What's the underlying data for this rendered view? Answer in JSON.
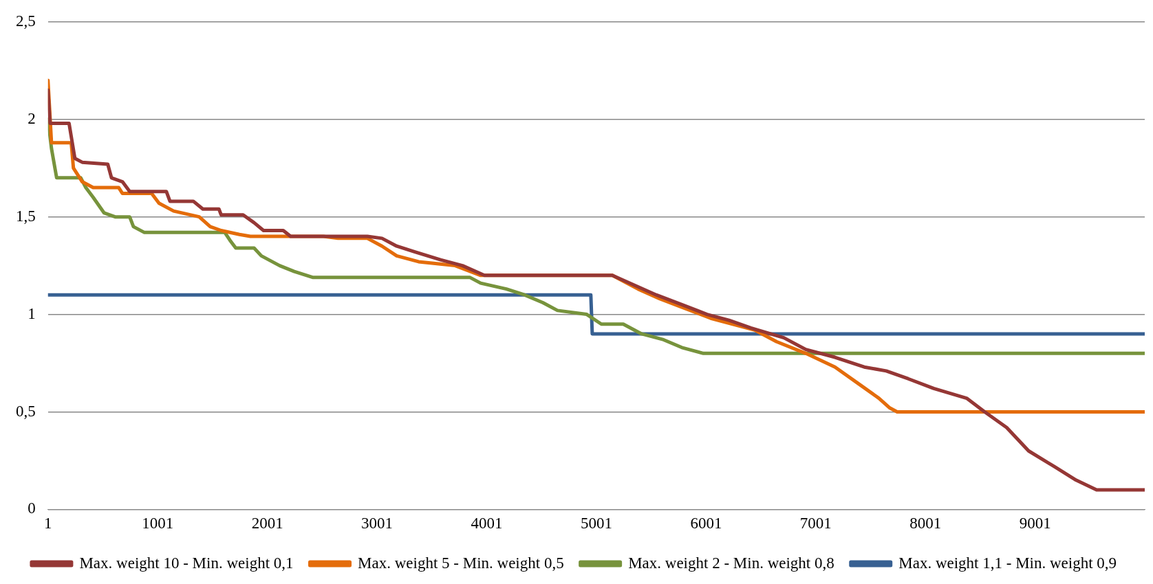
{
  "chart_data": {
    "type": "line",
    "xlim": [
      1,
      10000
    ],
    "xticks": [
      1,
      1001,
      2001,
      3001,
      4001,
      5001,
      6001,
      7001,
      8001,
      9001
    ],
    "ylim": [
      0,
      2.5
    ],
    "yticks": [
      0,
      {
        "value": 0.5,
        "label": "0,5"
      },
      1,
      {
        "value": 1.5,
        "label": "1,5"
      },
      2,
      {
        "value": 2.5,
        "label": "2,5"
      }
    ],
    "grid": "y",
    "legend": "bottom",
    "marker": "none",
    "line_style": "solid",
    "series": [
      {
        "name": "Max. weight 10 - Min. weight 0,1",
        "color": "#953735",
        "x": [
          1,
          20,
          193,
          246,
          313,
          546,
          580,
          680,
          746,
          1080,
          1113,
          1326,
          1413,
          1560,
          1580,
          1780,
          1880,
          1966,
          2146,
          2213,
          2913,
          3046,
          3180,
          3346,
          3580,
          3780,
          3980,
          5146,
          5346,
          5546,
          5780,
          6010,
          6210,
          6410,
          6710,
          6910,
          7176,
          7443,
          7643,
          7843,
          8076,
          8376,
          8541,
          8741,
          8941,
          9174,
          9374,
          9561,
          10000
        ],
        "values": [
          2.15,
          1.98,
          1.98,
          1.8,
          1.78,
          1.77,
          1.7,
          1.68,
          1.63,
          1.63,
          1.58,
          1.58,
          1.54,
          1.54,
          1.51,
          1.51,
          1.47,
          1.43,
          1.43,
          1.4,
          1.4,
          1.39,
          1.35,
          1.32,
          1.28,
          1.25,
          1.2,
          1.2,
          1.15,
          1.1,
          1.05,
          1.0,
          0.97,
          0.93,
          0.88,
          0.82,
          0.78,
          0.73,
          0.71,
          0.67,
          0.62,
          0.57,
          0.5,
          0.42,
          0.3,
          0.22,
          0.15,
          0.1,
          0.1
        ]
      },
      {
        "name": "Max. weight 5 - Min. weight 0,5",
        "color": "#e46c0a",
        "x": [
          1,
          33,
          213,
          233,
          313,
          413,
          646,
          680,
          946,
          1013,
          1146,
          1380,
          1480,
          1580,
          1746,
          1846,
          2512,
          2645,
          2913,
          3046,
          3180,
          3380,
          3713,
          3946,
          5146,
          5380,
          5580,
          5813,
          6043,
          6243,
          6443,
          6643,
          6910,
          7176,
          7376,
          7576,
          7676,
          7743,
          10000
        ],
        "values": [
          2.2,
          1.88,
          1.88,
          1.75,
          1.68,
          1.65,
          1.65,
          1.62,
          1.62,
          1.57,
          1.53,
          1.5,
          1.45,
          1.43,
          1.41,
          1.4,
          1.4,
          1.39,
          1.39,
          1.35,
          1.3,
          1.27,
          1.25,
          1.2,
          1.2,
          1.13,
          1.08,
          1.03,
          0.98,
          0.95,
          0.92,
          0.86,
          0.8,
          0.73,
          0.65,
          0.57,
          0.52,
          0.5,
          0.5
        ]
      },
      {
        "name": "Max. weight 2 - Min. weight 0,8",
        "color": "#77933c",
        "x": [
          1,
          33,
          80,
          300,
          346,
          413,
          513,
          613,
          746,
          780,
          880,
          1613,
          1660,
          1713,
          1880,
          1946,
          2113,
          2246,
          2413,
          3846,
          3946,
          4180,
          4346,
          4513,
          4646,
          4913,
          5046,
          5246,
          5413,
          5613,
          5780,
          5976,
          10000
        ],
        "values": [
          2.0,
          1.85,
          1.7,
          1.7,
          1.65,
          1.6,
          1.52,
          1.5,
          1.5,
          1.45,
          1.42,
          1.42,
          1.38,
          1.34,
          1.34,
          1.3,
          1.25,
          1.22,
          1.19,
          1.19,
          1.16,
          1.13,
          1.1,
          1.06,
          1.02,
          1.0,
          0.95,
          0.95,
          0.9,
          0.87,
          0.83,
          0.8,
          0.8
        ]
      },
      {
        "name": "Max. weight 1,1 - Min. weight 0,9",
        "color": "#376092",
        "x": [
          1,
          4950,
          4963,
          10000
        ],
        "values": [
          1.1,
          1.1,
          0.9,
          0.9
        ]
      }
    ]
  }
}
